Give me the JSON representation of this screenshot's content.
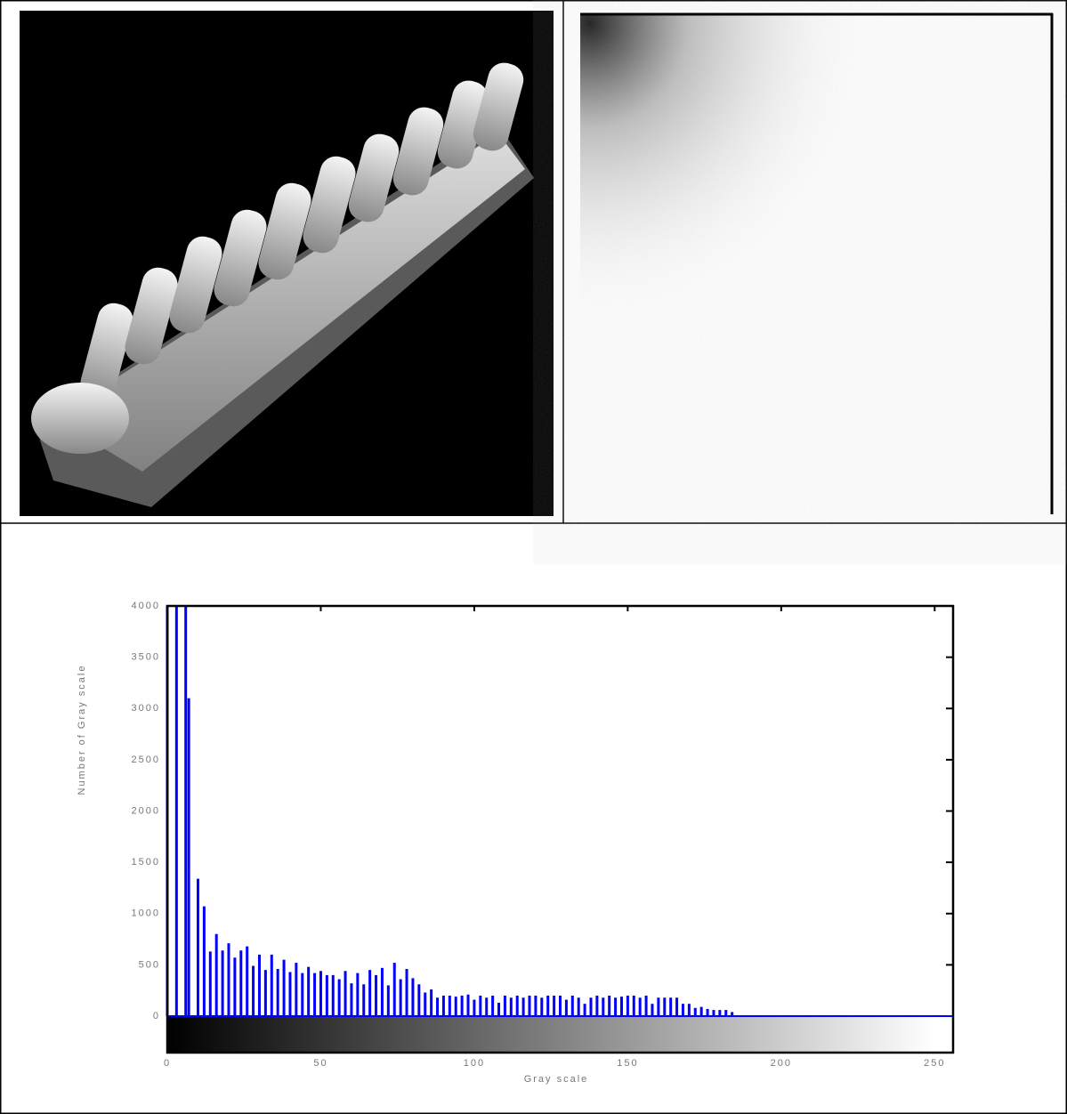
{
  "chart_data": {
    "type": "bar",
    "xlabel": "Gray scale",
    "ylabel": "Number of Gray scale",
    "color": "#0000ff",
    "x": [
      0,
      3,
      6,
      7,
      10,
      12,
      14,
      16,
      18,
      20,
      22,
      24,
      26,
      28,
      30,
      32,
      34,
      36,
      38,
      40,
      42,
      44,
      46,
      48,
      50,
      52,
      54,
      56,
      58,
      60,
      62,
      64,
      66,
      68,
      70,
      72,
      74,
      76,
      78,
      80,
      82,
      84,
      86,
      88,
      90,
      92,
      94,
      96,
      98,
      100,
      102,
      104,
      106,
      108,
      110,
      112,
      114,
      116,
      118,
      120,
      122,
      124,
      126,
      128,
      130,
      132,
      134,
      136,
      138,
      140,
      142,
      144,
      146,
      148,
      150,
      152,
      154,
      156,
      158,
      160,
      162,
      164,
      166,
      168,
      170,
      172,
      174,
      176,
      178,
      180,
      182,
      184
    ],
    "values": [
      4000,
      4000,
      4000,
      3100,
      1340,
      1070,
      630,
      800,
      640,
      710,
      570,
      640,
      680,
      490,
      600,
      450,
      600,
      460,
      550,
      430,
      520,
      420,
      480,
      420,
      440,
      400,
      400,
      360,
      440,
      320,
      420,
      310,
      450,
      400,
      470,
      300,
      520,
      360,
      460,
      370,
      310,
      230,
      260,
      180,
      200,
      200,
      190,
      200,
      210,
      160,
      200,
      180,
      200,
      130,
      200,
      180,
      200,
      180,
      200,
      200,
      180,
      200,
      200,
      200,
      160,
      200,
      180,
      120,
      180,
      200,
      180,
      200,
      180,
      190,
      200,
      200,
      180,
      200,
      120,
      180,
      180,
      180,
      180,
      120,
      120,
      80,
      90,
      70,
      60,
      60,
      60,
      40
    ],
    "xlim": [
      0,
      256
    ],
    "xticks": [
      0,
      50,
      100,
      150,
      200,
      250
    ],
    "ylim": [
      0,
      4000
    ],
    "yticks": [
      0,
      500,
      1000,
      1500,
      2000,
      2500,
      3000,
      3500,
      4000
    ]
  }
}
